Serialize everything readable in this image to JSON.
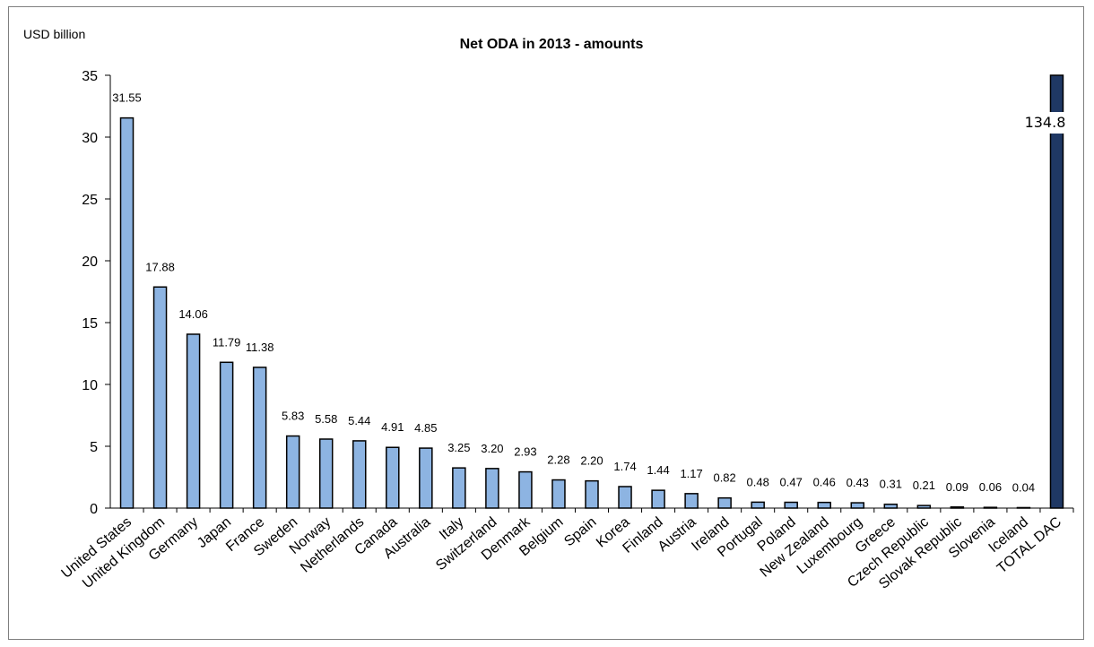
{
  "chart_data": {
    "type": "bar",
    "title": "Net ODA in 2013 - amounts",
    "ylabel": "USD billion",
    "xlabel": "",
    "ylim": [
      0,
      35
    ],
    "yticks": [
      0,
      5,
      10,
      15,
      20,
      25,
      30,
      35
    ],
    "grid": false,
    "legend": "none",
    "categories": [
      "United States",
      "United Kingdom",
      "Germany",
      "Japan",
      "France",
      "Sweden",
      "Norway",
      "Netherlands",
      "Canada",
      "Australia",
      "Italy",
      "Switzerland",
      "Denmark",
      "Belgium",
      "Spain",
      "Korea",
      "Finland",
      "Austria",
      "Ireland",
      "Portugal",
      "Poland",
      "New Zealand",
      "Luxembourg",
      "Greece",
      "Czech Republic",
      "Slovak Republic",
      "Slovenia",
      "Iceland",
      "TOTAL DAC"
    ],
    "values": [
      31.55,
      17.88,
      14.06,
      11.79,
      11.38,
      5.83,
      5.58,
      5.44,
      4.91,
      4.85,
      3.25,
      3.2,
      2.93,
      2.28,
      2.2,
      1.74,
      1.44,
      1.17,
      0.82,
      0.48,
      0.47,
      0.46,
      0.43,
      0.31,
      0.21,
      0.09,
      0.06,
      0.04,
      134.8
    ],
    "data_labels": [
      "31.55",
      "17.88",
      "14.06",
      "11.79",
      "11.38",
      "5.83",
      "5.58",
      "5.44",
      "4.91",
      "4.85",
      "3.25",
      "3.20",
      "2.93",
      "2.28",
      "2.20",
      "1.74",
      "1.44",
      "1.17",
      "0.82",
      "0.48",
      "0.47",
      "0.46",
      "0.43",
      "0.31",
      "0.21",
      "0.09",
      "0.06",
      "0.04",
      "134.8"
    ],
    "colors": {
      "country_bar": "#8db4e2",
      "total_bar": "#1f3864",
      "bar_outline": "#000000"
    }
  }
}
